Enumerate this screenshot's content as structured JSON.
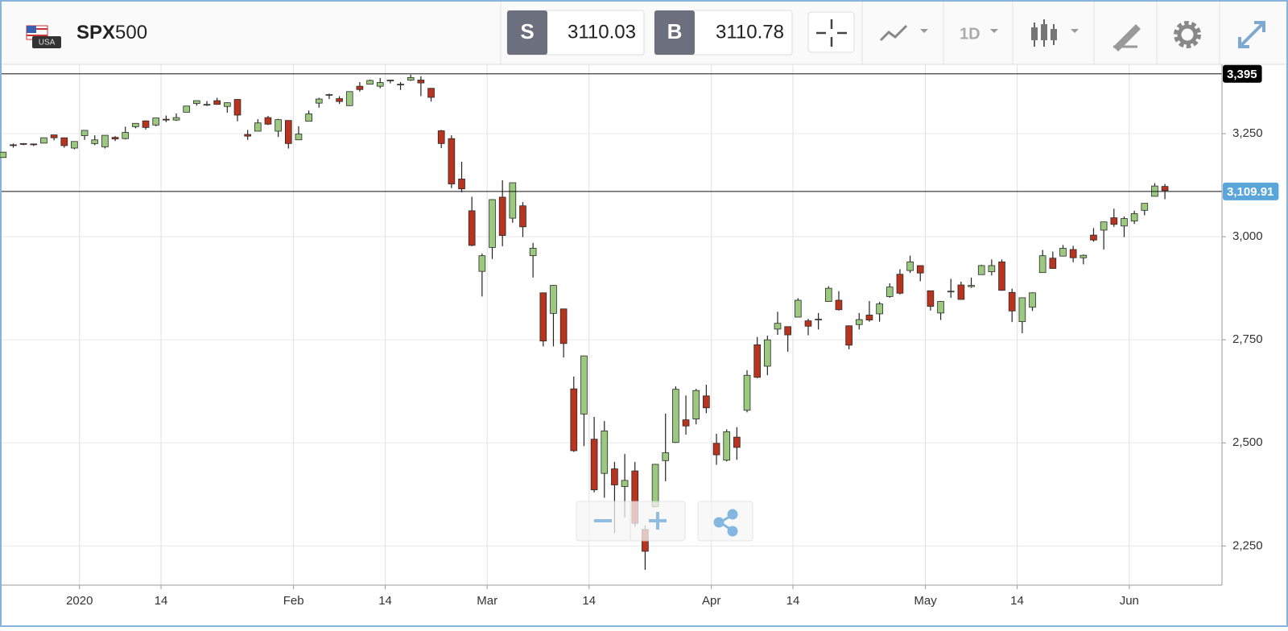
{
  "header": {
    "flag_text": "USA",
    "symbol_bold": "SPX",
    "symbol_rest": "500",
    "sell": {
      "letter": "S",
      "price": "3110.03"
    },
    "buy": {
      "letter": "B",
      "price": "3110.78"
    },
    "interval": "1D"
  },
  "chart_data": {
    "type": "candlestick",
    "up_color": "#9bc97f",
    "down_color": "#b8341e",
    "grid": true,
    "open": [
      3192,
      3223,
      3226,
      3225,
      3227,
      3247,
      3240,
      3215,
      3245,
      3226,
      3218,
      3241,
      3238,
      3267,
      3281,
      3271,
      3285,
      3283,
      3302,
      3323,
      3321,
      3330,
      3316,
      3333,
      3248,
      3256,
      3289,
      3256,
      3282,
      3235,
      3280,
      3324,
      3344,
      3335,
      3318,
      3365,
      3370,
      3365,
      3378,
      3369,
      3380,
      3380,
      3360,
      3257,
      3238,
      3140,
      3063,
      2916,
      2974,
      3096,
      3045,
      3075,
      2954,
      2864,
      2814,
      2825,
      2631,
      2570,
      2509,
      2426,
      2437,
      2394,
      2432,
      2290,
      2345,
      2457,
      2501,
      2556,
      2558,
      2614,
      2499,
      2458,
      2514,
      2579,
      2738,
      2686,
      2776,
      2782,
      2805,
      2796,
      2799,
      2843,
      2846,
      2784,
      2787,
      2810,
      2813,
      2855,
      2909,
      2918,
      2930,
      2869,
      2815,
      2868,
      2883,
      2879,
      2908,
      2915,
      2939,
      2865,
      2794,
      2829,
      2913,
      2948,
      2953,
      2969,
      2949,
      3004,
      3016,
      3046,
      3026,
      3038,
      3064,
      3098,
      3122
    ],
    "high": [
      3206,
      3226,
      3227,
      3226,
      3240,
      3247,
      3240,
      3231,
      3258,
      3246,
      3246,
      3244,
      3267,
      3275,
      3282,
      3288,
      3294,
      3299,
      3317,
      3330,
      3329,
      3337,
      3326,
      3334,
      3259,
      3285,
      3293,
      3286,
      3282,
      3268,
      3306,
      3337,
      3347,
      3341,
      3352,
      3375,
      3381,
      3385,
      3380,
      3375,
      3393,
      3389,
      3360,
      3259,
      3246,
      3182,
      3097,
      2959,
      3091,
      3137,
      3131,
      3084,
      2985,
      2864,
      2883,
      2825,
      2661,
      2711,
      2563,
      2553,
      2454,
      2473,
      2454,
      2300,
      2449,
      2571,
      2637,
      2615,
      2631,
      2641,
      2522,
      2533,
      2538,
      2676,
      2757,
      2760,
      2818,
      2782,
      2851,
      2801,
      2815,
      2880,
      2868,
      2785,
      2815,
      2844,
      2842,
      2887,
      2921,
      2954,
      2930,
      2869,
      2844,
      2898,
      2891,
      2901,
      2932,
      2945,
      2945,
      2874,
      2852,
      2865,
      2968,
      2964,
      2980,
      2978,
      2957,
      3021,
      3036,
      3068,
      3049,
      3063,
      3081,
      3130,
      3128
    ],
    "low": [
      3192,
      3216,
      3222,
      3220,
      3227,
      3234,
      3216,
      3212,
      3235,
      3222,
      3214,
      3232,
      3236,
      3263,
      3260,
      3268,
      3278,
      3281,
      3302,
      3318,
      3317,
      3320,
      3301,
      3280,
      3235,
      3256,
      3271,
      3242,
      3214,
      3235,
      3280,
      3313,
      3334,
      3322,
      3317,
      3352,
      3369,
      3360,
      3372,
      3356,
      3378,
      3341,
      3328,
      3215,
      3118,
      3108,
      2977,
      2855,
      2946,
      2977,
      3034,
      2999,
      2901,
      2734,
      2734,
      2707,
      2478,
      2492,
      2380,
      2367,
      2281,
      2319,
      2296,
      2192,
      2345,
      2407,
      2500,
      2520,
      2545,
      2572,
      2447,
      2455,
      2459,
      2574,
      2657,
      2664,
      2762,
      2721,
      2805,
      2761,
      2775,
      2842,
      2821,
      2727,
      2775,
      2794,
      2794,
      2852,
      2860,
      2912,
      2892,
      2821,
      2798,
      2852,
      2847,
      2876,
      2908,
      2906,
      2869,
      2793,
      2766,
      2820,
      2913,
      2922,
      2953,
      2938,
      2933,
      2988,
      2969,
      3024,
      2999,
      3031,
      3052,
      3098,
      3091
    ],
    "close": [
      3205,
      3221,
      3224,
      3223,
      3240,
      3240,
      3221,
      3231,
      3258,
      3235,
      3246,
      3237,
      3253,
      3275,
      3265,
      3288,
      3283,
      3289,
      3317,
      3330,
      3321,
      3321,
      3325,
      3295,
      3244,
      3276,
      3273,
      3284,
      3226,
      3249,
      3298,
      3334,
      3345,
      3328,
      3352,
      3357,
      3379,
      3374,
      3380,
      3370,
      3386,
      3373,
      3338,
      3226,
      3128,
      3116,
      2979,
      2954,
      3090,
      3003,
      3131,
      3024,
      2972,
      2747,
      2882,
      2741,
      2481,
      2711,
      2386,
      2529,
      2398,
      2409,
      2305,
      2237,
      2448,
      2476,
      2630,
      2541,
      2627,
      2585,
      2471,
      2527,
      2489,
      2664,
      2659,
      2750,
      2790,
      2762,
      2846,
      2783,
      2800,
      2875,
      2823,
      2737,
      2799,
      2798,
      2837,
      2878,
      2863,
      2939,
      2912,
      2831,
      2843,
      2868,
      2848,
      2882,
      2930,
      2930,
      2870,
      2820,
      2852,
      2864,
      2954,
      2923,
      2972,
      2949,
      2955,
      2992,
      3036,
      3030,
      3044,
      3056,
      3081,
      3123,
      3112
    ],
    "xlim": [
      -0.3,
      119.6
    ],
    "xticks": [
      {
        "value": 7.5,
        "label": "2020"
      },
      {
        "value": 15.5,
        "label": "14"
      },
      {
        "value": 28.5,
        "label": "Feb"
      },
      {
        "value": 37.5,
        "label": "14"
      },
      {
        "value": 47.5,
        "label": "Mar"
      },
      {
        "value": 57.5,
        "label": "14"
      },
      {
        "value": 69.5,
        "label": "Apr"
      },
      {
        "value": 77.5,
        "label": "14"
      },
      {
        "value": 90.5,
        "label": "May"
      },
      {
        "value": 99.5,
        "label": "14"
      },
      {
        "value": 110.5,
        "label": "Jun"
      }
    ],
    "ylim": [
      2155,
      3418
    ],
    "yticks": [
      {
        "value": 2250,
        "label": "2,250"
      },
      {
        "value": 2500,
        "label": "2,500"
      },
      {
        "value": 2750,
        "label": "2,750"
      },
      {
        "value": 3000,
        "label": "3,000"
      },
      {
        "value": 3250,
        "label": "3,250"
      }
    ],
    "hlines": [
      {
        "value": 3395,
        "label": "3,395",
        "color": "#000000"
      },
      {
        "value": 3109.91,
        "label": "3,109.91",
        "color": "#5aa6db"
      }
    ]
  }
}
